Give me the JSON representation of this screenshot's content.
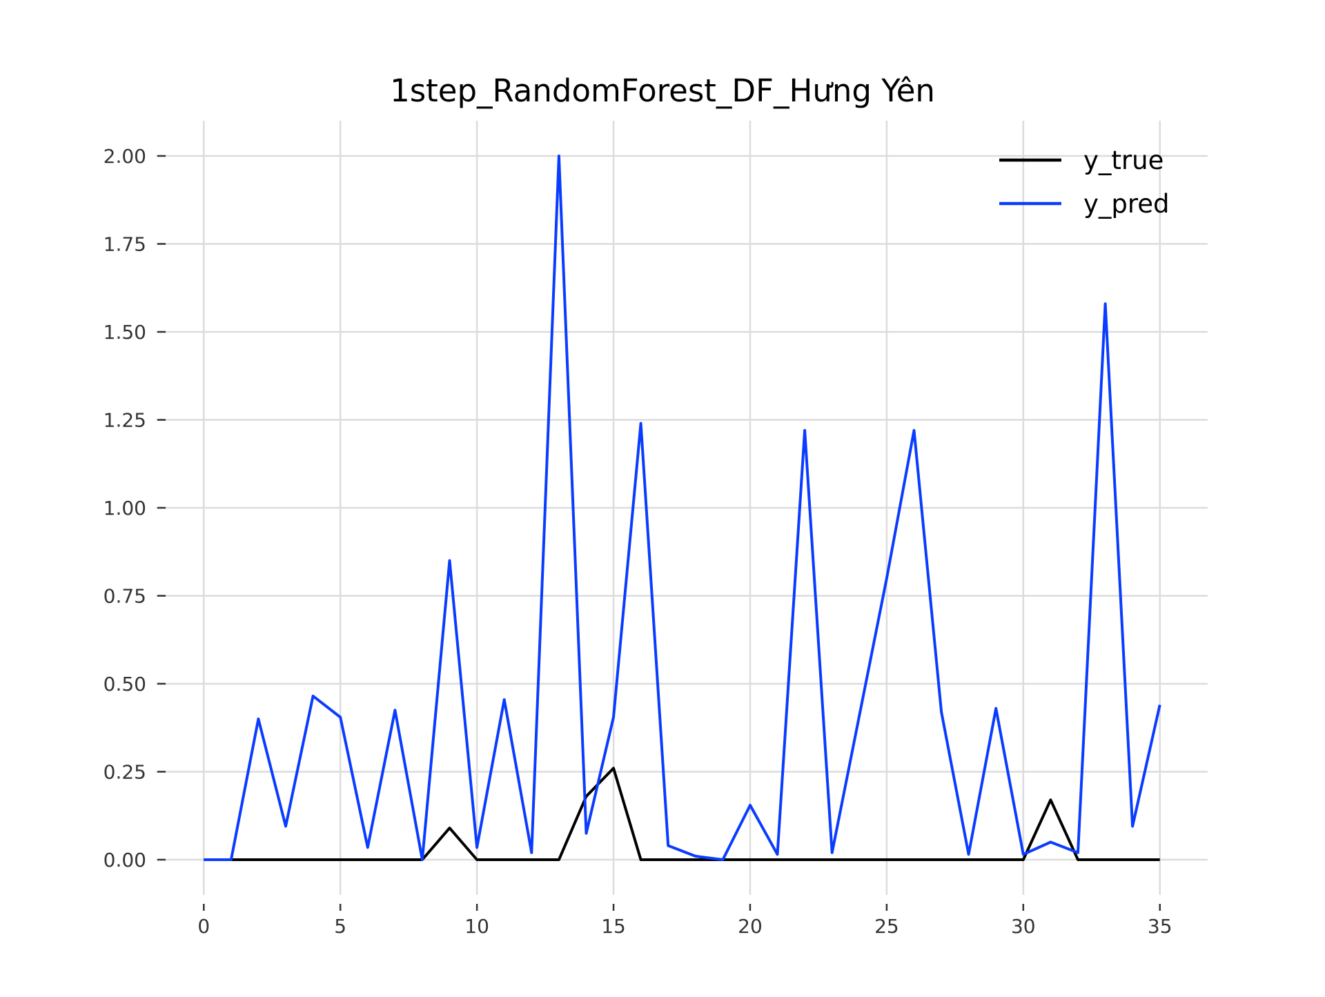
{
  "chart_data": {
    "type": "line",
    "title": "1step_RandomForest_DF_Hưng Yên",
    "xlabel": "",
    "ylabel": "",
    "xlim": [
      -1.75,
      36.75
    ],
    "ylim": [
      -0.1,
      2.1
    ],
    "xticks": [
      0,
      5,
      10,
      15,
      20,
      25,
      30,
      35
    ],
    "xtick_labels": [
      "0",
      "5",
      "10",
      "15",
      "20",
      "25",
      "30",
      "35"
    ],
    "yticks": [
      0,
      0.25,
      0.5,
      0.75,
      1.0,
      1.25,
      1.5,
      1.75,
      2.0
    ],
    "ytick_labels": [
      "0.00",
      "0.25",
      "0.50",
      "0.75",
      "1.00",
      "1.25",
      "1.50",
      "1.75",
      "2.00"
    ],
    "grid": true,
    "legend_position": "top-right",
    "x": [
      0,
      1,
      2,
      3,
      4,
      5,
      6,
      7,
      8,
      9,
      10,
      11,
      12,
      13,
      14,
      15,
      16,
      17,
      18,
      19,
      20,
      21,
      22,
      23,
      24,
      25,
      26,
      27,
      28,
      29,
      30,
      31,
      32,
      33,
      34,
      35
    ],
    "series": [
      {
        "name": "y_true",
        "color": "#000000",
        "values": [
          0,
          0,
          0,
          0,
          0,
          0,
          0,
          0,
          0,
          0.09,
          0,
          0,
          0,
          0,
          0.18,
          0.26,
          0,
          0,
          0,
          0,
          0,
          0,
          0,
          0,
          0,
          0,
          0,
          0,
          0,
          0,
          0,
          0.17,
          0,
          0,
          0,
          0
        ]
      },
      {
        "name": "y_pred",
        "color": "#0a3cff",
        "values": [
          0,
          0,
          0.4,
          0.095,
          0.465,
          0.405,
          0.035,
          0.425,
          0,
          0.85,
          0.035,
          0.455,
          0.02,
          2.0,
          0.075,
          0.405,
          1.24,
          0.04,
          0.01,
          0,
          0.155,
          0.015,
          1.22,
          0.02,
          0.41,
          0.8,
          1.22,
          0.42,
          0.015,
          0.43,
          0.015,
          0.05,
          0.02,
          1.58,
          0.095,
          0.44
        ]
      }
    ]
  }
}
